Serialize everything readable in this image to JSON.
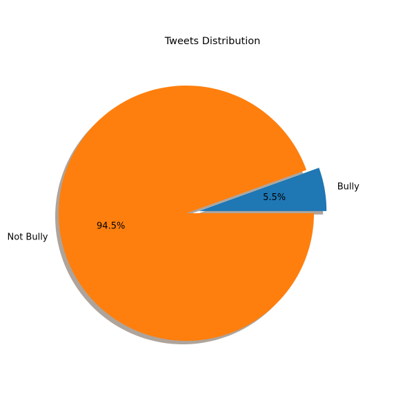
{
  "chart_data": {
    "type": "pie",
    "title": "Tweets Distribution",
    "slices": [
      {
        "label": "Bully",
        "value": 5.5,
        "pct_label": "5.5%",
        "color": "#1f77b4",
        "explode": 0.1
      },
      {
        "label": "Not Bully",
        "value": 94.5,
        "pct_label": "94.5%",
        "color": "#ff7f0e",
        "explode": 0
      }
    ],
    "start_angle_deg": 0,
    "direction": "counterclockwise",
    "shadow": true,
    "shadow_color": "#a0948a"
  }
}
